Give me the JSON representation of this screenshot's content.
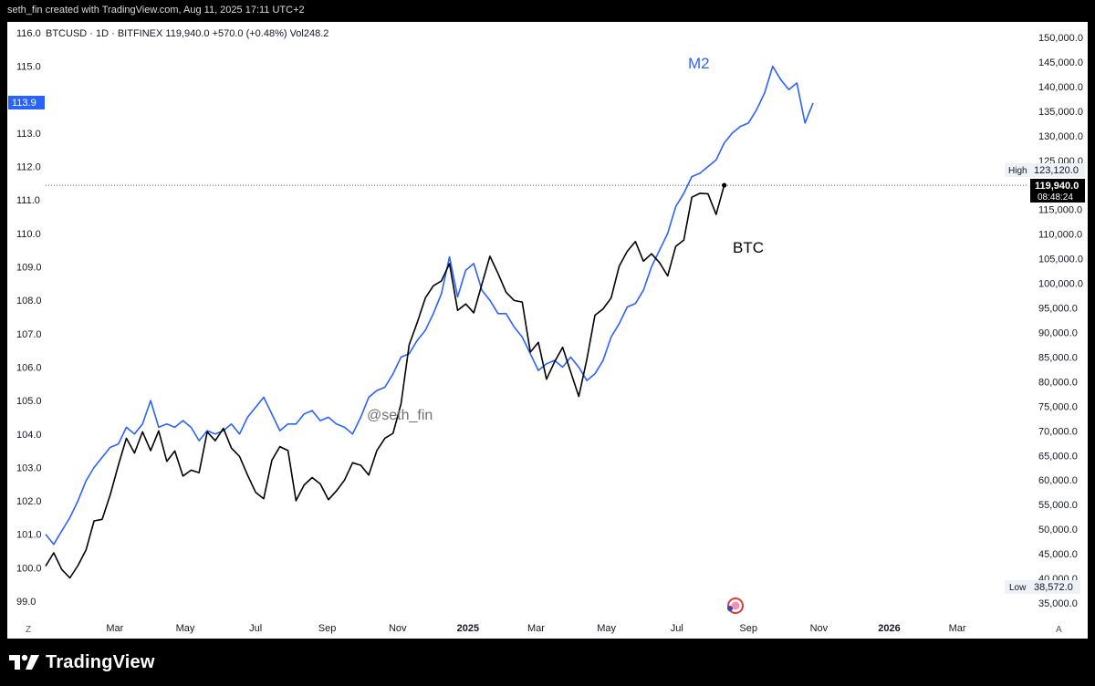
{
  "header": {
    "caption": "seth_fin created with TradingView.com, Aug 11, 2025 17:11 UTC+2"
  },
  "footer": {
    "brand": "TradingView"
  },
  "legend": {
    "text": "BTCUSD · 1D · BITFINEX  119,940.0  +570.0 (+0.48%)  Vol248.2"
  },
  "watermark": "@seth_fin",
  "tags": {
    "m2_current": "113.9",
    "btc_current": "119,940.0",
    "countdown": "08:48:24",
    "high_label": "High",
    "high_value": "123,120.0",
    "low_label": "Low",
    "low_value": "38,572.0"
  },
  "corner_left": "Z",
  "corner_right": "A",
  "chart_data": {
    "type": "line",
    "x_tick_labels": [
      {
        "date": "2024-03-01",
        "label": "Mar",
        "bold": false
      },
      {
        "date": "2024-05-01",
        "label": "May",
        "bold": false
      },
      {
        "date": "2024-07-01",
        "label": "Jul",
        "bold": false
      },
      {
        "date": "2024-09-01",
        "label": "Sep",
        "bold": false
      },
      {
        "date": "2024-11-01",
        "label": "Nov",
        "bold": false
      },
      {
        "date": "2025-01-01",
        "label": "2025",
        "bold": true
      },
      {
        "date": "2025-03-01",
        "label": "Mar",
        "bold": false
      },
      {
        "date": "2025-05-01",
        "label": "May",
        "bold": false
      },
      {
        "date": "2025-07-01",
        "label": "Jul",
        "bold": false
      },
      {
        "date": "2025-09-01",
        "label": "Sep",
        "bold": false
      },
      {
        "date": "2025-11-01",
        "label": "Nov",
        "bold": false
      },
      {
        "date": "2026-01-01",
        "label": "2026",
        "bold": true
      },
      {
        "date": "2026-03-01",
        "label": "Mar",
        "bold": false
      },
      {
        "date": "2026-05-01",
        "label": "A",
        "bold": false
      }
    ],
    "left_axis": {
      "ticks": [
        "116.0",
        "115.0",
        "114.0",
        "113.0",
        "112.0",
        "111.0",
        "110.0",
        "109.0",
        "108.0",
        "107.0",
        "106.0",
        "105.0",
        "104.0",
        "103.0",
        "102.0",
        "101.0",
        "100.0",
        "99.0"
      ],
      "range": [
        98.9,
        116.2
      ]
    },
    "right_axis": {
      "ticks": [
        "150,000.0",
        "145,000.0",
        "140,000.0",
        "135,000.0",
        "130,000.0",
        "125,000.0",
        "120,000.0",
        "115,000.0",
        "110,000.0",
        "105,000.0",
        "100,000.0",
        "95,000.0",
        "90,000.0",
        "85,000.0",
        "80,000.0",
        "75,000.0",
        "70,000.0",
        "65,000.0",
        "60,000.0",
        "55,000.0",
        "50,000.0",
        "45,000.0",
        "40,000.0",
        "35,000.0"
      ],
      "range": [
        33500,
        151000
      ]
    },
    "series": [
      {
        "name": "M2",
        "axis": "left",
        "color": "#2962ff",
        "points": [
          [
            "2024-01-01",
            101.0
          ],
          [
            "2024-01-08",
            100.7
          ],
          [
            "2024-01-15",
            101.1
          ],
          [
            "2024-01-22",
            101.5
          ],
          [
            "2024-01-29",
            102.0
          ],
          [
            "2024-02-05",
            102.6
          ],
          [
            "2024-02-12",
            103.0
          ],
          [
            "2024-02-19",
            103.3
          ],
          [
            "2024-02-26",
            103.6
          ],
          [
            "2024-03-04",
            103.7
          ],
          [
            "2024-03-11",
            104.2
          ],
          [
            "2024-03-18",
            104.0
          ],
          [
            "2024-03-25",
            104.3
          ],
          [
            "2024-04-01",
            105.0
          ],
          [
            "2024-04-08",
            104.2
          ],
          [
            "2024-04-15",
            104.3
          ],
          [
            "2024-04-22",
            104.2
          ],
          [
            "2024-04-29",
            104.4
          ],
          [
            "2024-05-06",
            104.2
          ],
          [
            "2024-05-13",
            103.8
          ],
          [
            "2024-05-20",
            104.1
          ],
          [
            "2024-05-27",
            104.0
          ],
          [
            "2024-06-03",
            104.1
          ],
          [
            "2024-06-10",
            104.3
          ],
          [
            "2024-06-17",
            104.0
          ],
          [
            "2024-06-24",
            104.5
          ],
          [
            "2024-07-01",
            104.8
          ],
          [
            "2024-07-08",
            105.1
          ],
          [
            "2024-07-15",
            104.6
          ],
          [
            "2024-07-22",
            104.1
          ],
          [
            "2024-07-29",
            104.3
          ],
          [
            "2024-08-05",
            104.3
          ],
          [
            "2024-08-12",
            104.6
          ],
          [
            "2024-08-19",
            104.7
          ],
          [
            "2024-08-26",
            104.4
          ],
          [
            "2024-09-02",
            104.5
          ],
          [
            "2024-09-09",
            104.3
          ],
          [
            "2024-09-16",
            104.2
          ],
          [
            "2024-09-23",
            104.0
          ],
          [
            "2024-09-30",
            104.5
          ],
          [
            "2024-10-07",
            105.1
          ],
          [
            "2024-10-14",
            105.3
          ],
          [
            "2024-10-21",
            105.4
          ],
          [
            "2024-10-28",
            105.8
          ],
          [
            "2024-11-04",
            106.3
          ],
          [
            "2024-11-11",
            106.4
          ],
          [
            "2024-11-18",
            106.8
          ],
          [
            "2024-11-25",
            107.1
          ],
          [
            "2024-12-02",
            107.6
          ],
          [
            "2024-12-09",
            108.2
          ],
          [
            "2024-12-16",
            109.3
          ],
          [
            "2024-12-23",
            108.1
          ],
          [
            "2024-12-30",
            108.9
          ],
          [
            "2025-01-06",
            109.1
          ],
          [
            "2025-01-13",
            108.3
          ],
          [
            "2025-01-20",
            108.0
          ],
          [
            "2025-01-27",
            107.6
          ],
          [
            "2025-02-03",
            107.6
          ],
          [
            "2025-02-10",
            107.2
          ],
          [
            "2025-02-17",
            106.9
          ],
          [
            "2025-02-24",
            106.4
          ],
          [
            "2025-03-03",
            105.9
          ],
          [
            "2025-03-10",
            106.1
          ],
          [
            "2025-03-17",
            106.2
          ],
          [
            "2025-03-24",
            106.0
          ],
          [
            "2025-03-31",
            106.3
          ],
          [
            "2025-04-07",
            106.0
          ],
          [
            "2025-04-14",
            105.6
          ],
          [
            "2025-04-21",
            105.8
          ],
          [
            "2025-04-28",
            106.2
          ],
          [
            "2025-05-05",
            106.9
          ],
          [
            "2025-05-12",
            107.3
          ],
          [
            "2025-05-19",
            107.8
          ],
          [
            "2025-05-26",
            107.9
          ],
          [
            "2025-06-02",
            108.3
          ],
          [
            "2025-06-09",
            109.0
          ],
          [
            "2025-06-16",
            109.5
          ],
          [
            "2025-06-23",
            110.0
          ],
          [
            "2025-06-30",
            110.8
          ],
          [
            "2025-07-07",
            111.2
          ],
          [
            "2025-07-14",
            111.7
          ],
          [
            "2025-07-21",
            111.8
          ],
          [
            "2025-07-28",
            112.0
          ],
          [
            "2025-08-04",
            112.2
          ],
          [
            "2025-08-11",
            112.7
          ],
          [
            "2025-08-18",
            113.0
          ],
          [
            "2025-08-25",
            113.2
          ],
          [
            "2025-09-01",
            113.3
          ],
          [
            "2025-09-08",
            113.7
          ],
          [
            "2025-09-15",
            114.2
          ],
          [
            "2025-09-22",
            115.0
          ],
          [
            "2025-09-29",
            114.6
          ],
          [
            "2025-10-06",
            114.3
          ],
          [
            "2025-10-13",
            114.5
          ],
          [
            "2025-10-20",
            113.3
          ],
          [
            "2025-10-27",
            113.9
          ]
        ]
      },
      {
        "name": "BTC",
        "axis": "right",
        "color": "#000000",
        "points": [
          [
            "2024-01-01",
            42500
          ],
          [
            "2024-01-08",
            45200
          ],
          [
            "2024-01-15",
            41800
          ],
          [
            "2024-01-22",
            40100
          ],
          [
            "2024-01-29",
            42600
          ],
          [
            "2024-02-05",
            45800
          ],
          [
            "2024-02-12",
            51700
          ],
          [
            "2024-02-19",
            52000
          ],
          [
            "2024-02-26",
            57000
          ],
          [
            "2024-03-04",
            63000
          ],
          [
            "2024-03-11",
            68500
          ],
          [
            "2024-03-18",
            65500
          ],
          [
            "2024-03-25",
            69800
          ],
          [
            "2024-04-01",
            66000
          ],
          [
            "2024-04-08",
            70000
          ],
          [
            "2024-04-15",
            63800
          ],
          [
            "2024-04-22",
            65900
          ],
          [
            "2024-04-29",
            60800
          ],
          [
            "2024-05-06",
            62000
          ],
          [
            "2024-05-13",
            61500
          ],
          [
            "2024-05-20",
            69800
          ],
          [
            "2024-05-27",
            68000
          ],
          [
            "2024-06-03",
            70500
          ],
          [
            "2024-06-10",
            66500
          ],
          [
            "2024-06-17",
            64800
          ],
          [
            "2024-06-24",
            61000
          ],
          [
            "2024-07-01",
            57500
          ],
          [
            "2024-07-08",
            56200
          ],
          [
            "2024-07-15",
            64000
          ],
          [
            "2024-07-22",
            66800
          ],
          [
            "2024-07-29",
            66000
          ],
          [
            "2024-08-05",
            55800
          ],
          [
            "2024-08-12",
            59000
          ],
          [
            "2024-08-19",
            60500
          ],
          [
            "2024-08-26",
            59200
          ],
          [
            "2024-09-02",
            56000
          ],
          [
            "2024-09-09",
            57800
          ],
          [
            "2024-09-16",
            60000
          ],
          [
            "2024-09-23",
            63500
          ],
          [
            "2024-09-30",
            63000
          ],
          [
            "2024-10-07",
            61000
          ],
          [
            "2024-10-14",
            66000
          ],
          [
            "2024-10-21",
            68500
          ],
          [
            "2024-10-28",
            69500
          ],
          [
            "2024-11-04",
            75500
          ],
          [
            "2024-11-11",
            87500
          ],
          [
            "2024-11-18",
            92000
          ],
          [
            "2024-11-25",
            97000
          ],
          [
            "2024-12-02",
            99500
          ],
          [
            "2024-12-09",
            100500
          ],
          [
            "2024-12-16",
            104000
          ],
          [
            "2024-12-23",
            94500
          ],
          [
            "2024-12-30",
            95800
          ],
          [
            "2025-01-06",
            94000
          ],
          [
            "2025-01-13",
            99800
          ],
          [
            "2025-01-20",
            105500
          ],
          [
            "2025-01-27",
            102000
          ],
          [
            "2025-02-03",
            98200
          ],
          [
            "2025-02-10",
            96500
          ],
          [
            "2025-02-17",
            96200
          ],
          [
            "2025-02-24",
            86000
          ],
          [
            "2025-03-03",
            88000
          ],
          [
            "2025-03-10",
            80500
          ],
          [
            "2025-03-17",
            84000
          ],
          [
            "2025-03-24",
            87000
          ],
          [
            "2025-03-31",
            82000
          ],
          [
            "2025-04-07",
            77000
          ],
          [
            "2025-04-14",
            84500
          ],
          [
            "2025-04-21",
            93500
          ],
          [
            "2025-04-28",
            94800
          ],
          [
            "2025-05-05",
            97000
          ],
          [
            "2025-05-12",
            103500
          ],
          [
            "2025-05-19",
            106500
          ],
          [
            "2025-05-26",
            108500
          ],
          [
            "2025-06-02",
            104500
          ],
          [
            "2025-06-09",
            106000
          ],
          [
            "2025-06-16",
            104200
          ],
          [
            "2025-06-23",
            101500
          ],
          [
            "2025-06-30",
            107500
          ],
          [
            "2025-07-07",
            108800
          ],
          [
            "2025-07-14",
            117500
          ],
          [
            "2025-07-21",
            118300
          ],
          [
            "2025-07-28",
            118200
          ],
          [
            "2025-08-04",
            114000
          ],
          [
            "2025-08-11",
            119940
          ]
        ]
      }
    ],
    "series_labels": [
      {
        "text": "M2",
        "color": "#2962ff"
      },
      {
        "text": "BTC",
        "color": "#000000"
      }
    ],
    "last_btc": 119940,
    "grid": false
  }
}
